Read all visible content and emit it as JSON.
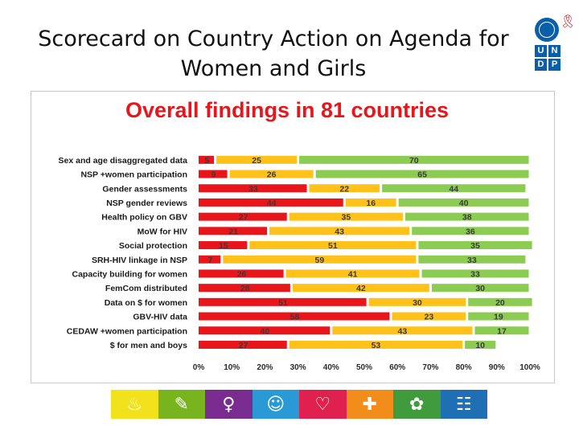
{
  "slide_title": "Scorecard on Country Action on Agenda for Women and Girls",
  "logo": {
    "letters": [
      "U",
      "N",
      "D",
      "P"
    ]
  },
  "chart_data": {
    "type": "bar",
    "orientation": "horizontal",
    "stacked": true,
    "title": "Overall findings in 81 countries",
    "categories": [
      "Sex and age disaggregated data",
      "NSP +women participation",
      "Gender assessments",
      "NSP gender reviews",
      "Health policy on GBV",
      "MoW for HIV",
      "Social protection",
      "SRH-HIV linkage in NSP",
      "Capacity building for women",
      "FemCom distributed",
      "Data on $ for women",
      "GBV-HIV data",
      "CEDAW +women participation",
      "$ for men and boys"
    ],
    "series": [
      {
        "color": "#e8151b",
        "values": [
          5,
          9,
          33,
          44,
          27,
          21,
          15,
          7,
          26,
          28,
          51,
          58,
          40,
          27
        ]
      },
      {
        "color": "#ffc21a",
        "values": [
          25,
          26,
          22,
          16,
          35,
          43,
          51,
          59,
          41,
          42,
          30,
          23,
          43,
          53
        ]
      },
      {
        "color": "#8ccc52",
        "values": [
          70,
          65,
          44,
          40,
          38,
          36,
          35,
          33,
          33,
          30,
          20,
          19,
          17,
          10
        ]
      }
    ],
    "x_ticks": [
      "0%",
      "10%",
      "20%",
      "30%",
      "40%",
      "50%",
      "60%",
      "70%",
      "80%",
      "90%",
      "100%"
    ],
    "xlim": [
      0,
      100
    ],
    "grid": false,
    "legend": "none"
  },
  "footer_icons": [
    {
      "icon": "lamp-icon",
      "color": "#f2e21b",
      "glyph": "♨"
    },
    {
      "icon": "pencil-icon",
      "color": "#78b41e",
      "glyph": "✎"
    },
    {
      "icon": "female-symbol-icon",
      "color": "#7a2b8f",
      "glyph": "♀"
    },
    {
      "icon": "child-icon",
      "color": "#2a9ad6",
      "glyph": "☺"
    },
    {
      "icon": "pregnant-woman-icon",
      "color": "#e0204e",
      "glyph": "♡"
    },
    {
      "icon": "medicine-icon",
      "color": "#f28c1a",
      "glyph": "✚"
    },
    {
      "icon": "flower-icon",
      "color": "#3f9b3c",
      "glyph": "✿"
    },
    {
      "icon": "people-icon",
      "color": "#1f6fb5",
      "glyph": "☷"
    }
  ]
}
